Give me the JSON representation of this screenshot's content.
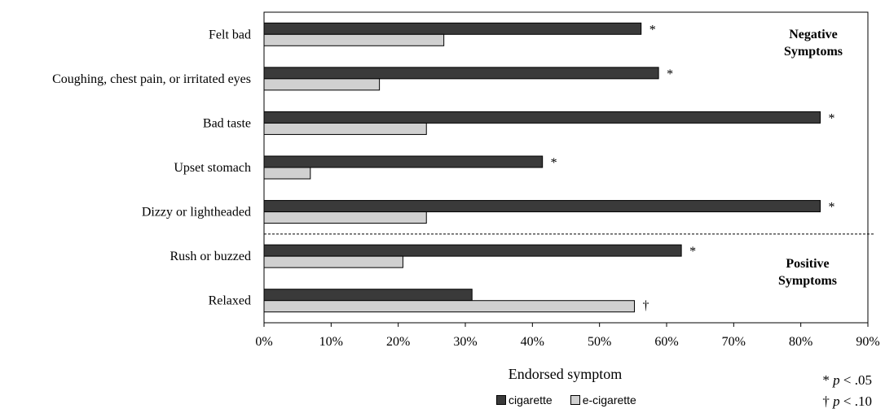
{
  "chart_data": {
    "type": "bar",
    "orientation": "horizontal",
    "categories": [
      "Felt bad",
      "Coughing, chest pain, or irritated eyes",
      "Bad taste",
      "Upset stomach",
      "Dizzy or lightheaded",
      "Rush or buzzed",
      "Relaxed"
    ],
    "series": [
      {
        "name": "cigarette",
        "color": "#3a3a3a",
        "values": [
          56.2,
          58.8,
          82.9,
          41.5,
          82.9,
          62.2,
          31.0
        ]
      },
      {
        "name": "e-cigarette",
        "color": "#d0d0d0",
        "values": [
          26.8,
          17.2,
          24.2,
          6.9,
          24.2,
          20.7,
          55.2
        ]
      }
    ],
    "annotations": [
      "*",
      "*",
      "*",
      "*",
      "*",
      "*",
      "†"
    ],
    "xlabel": "Endorsed symptom",
    "xlim": [
      0,
      90
    ],
    "xticks": [
      "0%",
      "10%",
      "20%",
      "30%",
      "40%",
      "50%",
      "60%",
      "70%",
      "80%",
      "90%"
    ],
    "groups": [
      {
        "label_line1": "Negative",
        "label_line2": "Symptoms"
      },
      {
        "label_line1": "Positive",
        "label_line2": "Symptoms"
      }
    ],
    "divider_after_category": 4,
    "legend": {
      "position": "bottom"
    },
    "significance": [
      {
        "symbol": "* ",
        "p": "p",
        "text": " < .05"
      },
      {
        "symbol": "† ",
        "p": "p",
        "text": " < .10"
      }
    ]
  }
}
